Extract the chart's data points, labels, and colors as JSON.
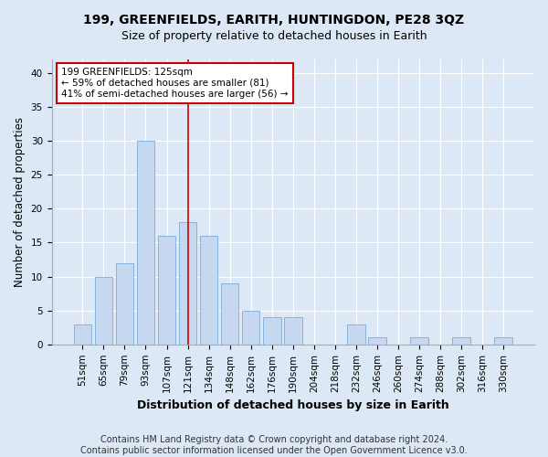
{
  "title": "199, GREENFIELDS, EARITH, HUNTINGDON, PE28 3QZ",
  "subtitle": "Size of property relative to detached houses in Earith",
  "xlabel": "Distribution of detached houses by size in Earith",
  "ylabel": "Number of detached properties",
  "categories": [
    "51sqm",
    "65sqm",
    "79sqm",
    "93sqm",
    "107sqm",
    "121sqm",
    "134sqm",
    "148sqm",
    "162sqm",
    "176sqm",
    "190sqm",
    "204sqm",
    "218sqm",
    "232sqm",
    "246sqm",
    "260sqm",
    "274sqm",
    "288sqm",
    "302sqm",
    "316sqm",
    "330sqm"
  ],
  "values": [
    3,
    10,
    12,
    30,
    16,
    18,
    16,
    9,
    5,
    4,
    4,
    0,
    0,
    3,
    1,
    0,
    1,
    0,
    1,
    0,
    1
  ],
  "bar_color": "#c5d8f0",
  "bar_edge_color": "#7aabda",
  "vline_x_index": 5,
  "vline_color": "#cc0000",
  "annotation_text": "199 GREENFIELDS: 125sqm\n← 59% of detached houses are smaller (81)\n41% of semi-detached houses are larger (56) →",
  "annotation_box_color": "#ffffff",
  "annotation_box_edge_color": "#cc0000",
  "ylim": [
    0,
    42
  ],
  "yticks": [
    0,
    5,
    10,
    15,
    20,
    25,
    30,
    35,
    40
  ],
  "bg_color": "#dce8f5",
  "plot_bg_color": "#dce8f5",
  "footer_text": "Contains HM Land Registry data © Crown copyright and database right 2024.\nContains public sector information licensed under the Open Government Licence v3.0.",
  "title_fontsize": 10,
  "subtitle_fontsize": 9,
  "xlabel_fontsize": 9,
  "ylabel_fontsize": 8.5,
  "tick_fontsize": 7.5,
  "footer_fontsize": 7
}
